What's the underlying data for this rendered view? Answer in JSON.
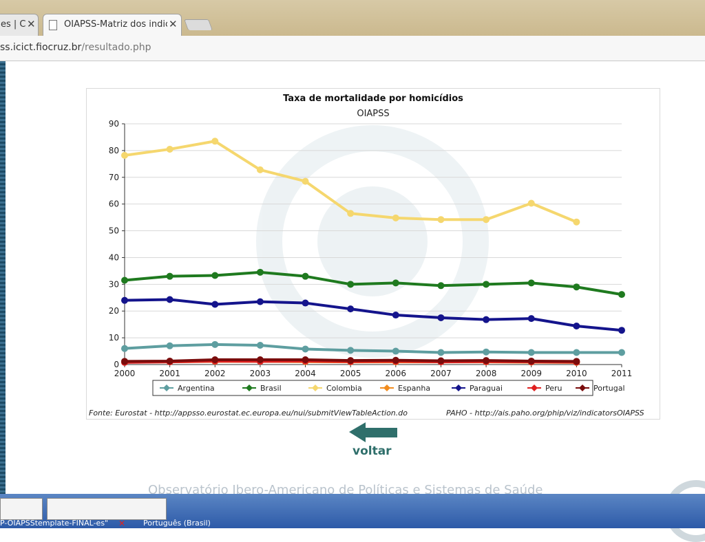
{
  "browser": {
    "tab_partial_label": "es | C",
    "active_tab_label": "OIAPSS-Matriz dos indic",
    "close_symbol": "✕",
    "url_host": "ss.icict.fiocruz.br",
    "url_path": "/resultado.php"
  },
  "chart_data": {
    "type": "line",
    "title": "Taxa de mortalidade por homicídios",
    "subtitle": "OIAPSS",
    "xlabel": "",
    "ylabel": "",
    "x": [
      2000,
      2001,
      2002,
      2003,
      2004,
      2005,
      2006,
      2007,
      2008,
      2009,
      2010,
      2011
    ],
    "x_tick_labels": [
      "2000",
      "2001",
      "2002",
      "2003",
      "2004",
      "2005",
      "2006",
      "2007",
      "2008",
      "2009",
      "2010",
      "2011"
    ],
    "ylim": [
      0,
      90
    ],
    "y_ticks": [
      0,
      10,
      20,
      30,
      40,
      50,
      60,
      70,
      80,
      90
    ],
    "y_tick_labels": [
      "0",
      "10",
      "20",
      "30",
      "40",
      "50",
      "60",
      "70",
      "80",
      "90"
    ],
    "grid": true,
    "legend_position": "bottom",
    "series": [
      {
        "name": "Argentina",
        "color": "#5e9ea0",
        "values": [
          6,
          7,
          7.5,
          7.2,
          5.8,
          5.3,
          5,
          4.5,
          4.7,
          4.5,
          4.5,
          4.5
        ]
      },
      {
        "name": "Brasil",
        "color": "#1f7a1f",
        "values": [
          31.5,
          33,
          33.3,
          34.5,
          33,
          30,
          30.5,
          29.5,
          30,
          30.5,
          29,
          26.2
        ]
      },
      {
        "name": "Colombia",
        "color": "#f5d76e",
        "values": [
          78.2,
          80.5,
          83.5,
          72.8,
          68.5,
          56.5,
          54.8,
          54.2,
          54.2,
          60.3,
          53.3,
          null
        ]
      },
      {
        "name": "Espanha",
        "color": "#f28c1e",
        "values": [
          0.9,
          1,
          1.2,
          1.2,
          1.1,
          1,
          1,
          1,
          1,
          0.9,
          0.8,
          null
        ]
      },
      {
        "name": "Paraguai",
        "color": "#14148c",
        "values": [
          24,
          24.3,
          22.5,
          23.5,
          23,
          20.8,
          18.5,
          17.5,
          16.8,
          17.2,
          14.4,
          12.8
        ]
      },
      {
        "name": "Peru",
        "color": "#e02020",
        "values": [
          0.8,
          1,
          1.3,
          1.2,
          1.3,
          1.1,
          1.2,
          1,
          1.1,
          1,
          0.9,
          null
        ]
      },
      {
        "name": "Portugal",
        "color": "#7a0c0c",
        "values": [
          1.2,
          1.3,
          1.8,
          1.8,
          1.8,
          1.5,
          1.6,
          1.4,
          1.5,
          1.3,
          1.2,
          null
        ]
      }
    ],
    "source_left": "Fonte: Eurostat - http://appsso.eurostat.ec.europa.eu/nui/submitViewTableAction.do",
    "source_right": "PAHO - http://ais.paho.org/phip/viz/indicatorsOIAPSS"
  },
  "navigation": {
    "back_label": "voltar"
  },
  "footer": {
    "ghost_text": "Observatório Ibero-Americano de Políticas e Sistemas de Saúde"
  },
  "taskbar": {
    "left_label": "P-OIAPSStemplate-FINAL-es\"",
    "language_label": "Português (Brasil)"
  }
}
